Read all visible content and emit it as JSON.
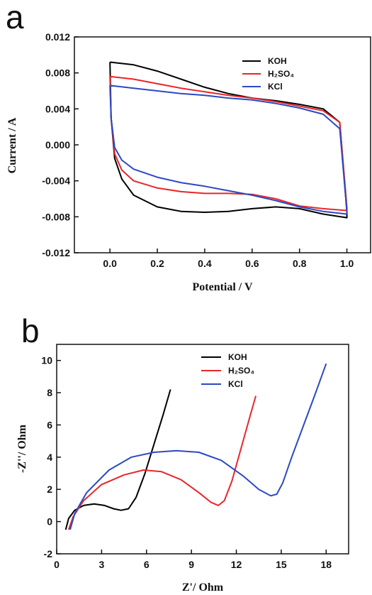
{
  "chart_data": [
    {
      "panel": "a",
      "type": "line",
      "xlabel": "Potential / V",
      "ylabel": "Current / A",
      "xlim": [
        -0.15,
        1.1
      ],
      "ylim": [
        -0.012,
        0.012
      ],
      "xticks": [
        "0.0",
        "0.2",
        "0.4",
        "0.6",
        "0.8",
        "1.0"
      ],
      "xtick_values": [
        0,
        0.2,
        0.4,
        0.6,
        0.8,
        1.0
      ],
      "yticks": [
        "0.012",
        "0.008",
        "0.004",
        "0.000",
        "-0.004",
        "-0.008",
        "-0.012"
      ],
      "ytick_values": [
        0.012,
        0.008,
        0.004,
        0.0,
        -0.004,
        -0.008,
        -0.012
      ],
      "legend_position": "top-right",
      "series": [
        {
          "name": "KOH",
          "color": "#000000",
          "x": [
            0,
            0.1,
            0.2,
            0.3,
            0.4,
            0.5,
            0.6,
            0.7,
            0.8,
            0.9,
            0.97,
            1.0,
            1.0,
            0.9,
            0.8,
            0.7,
            0.6,
            0.5,
            0.4,
            0.3,
            0.2,
            0.1,
            0.05,
            0.02,
            0.005,
            0
          ],
          "y": [
            0.0092,
            0.0089,
            0.0082,
            0.0073,
            0.0064,
            0.0057,
            0.0052,
            0.0049,
            0.0045,
            0.004,
            0.0025,
            -0.0075,
            -0.0081,
            -0.0077,
            -0.0071,
            -0.0069,
            -0.0071,
            -0.0074,
            -0.0075,
            -0.0074,
            -0.0069,
            -0.0056,
            -0.0038,
            -0.0015,
            0.003,
            0.0092
          ]
        },
        {
          "name": "H₂SO₄",
          "color": "#e8262a",
          "x": [
            0,
            0.1,
            0.2,
            0.3,
            0.4,
            0.5,
            0.6,
            0.7,
            0.8,
            0.9,
            0.97,
            1.0,
            1.0,
            0.9,
            0.8,
            0.7,
            0.6,
            0.5,
            0.4,
            0.3,
            0.2,
            0.1,
            0.05,
            0.02,
            0.005,
            0
          ],
          "y": [
            0.0076,
            0.0073,
            0.0068,
            0.0063,
            0.0059,
            0.0055,
            0.0052,
            0.0048,
            0.0043,
            0.0038,
            0.0025,
            -0.007,
            -0.0073,
            -0.0071,
            -0.0068,
            -0.006,
            -0.0055,
            -0.0054,
            -0.0054,
            -0.0052,
            -0.0048,
            -0.004,
            -0.0028,
            -0.001,
            0.003,
            0.0076
          ]
        },
        {
          "name": "KCl",
          "color": "#2b49c2",
          "x": [
            0,
            0.1,
            0.2,
            0.3,
            0.4,
            0.5,
            0.6,
            0.7,
            0.8,
            0.9,
            0.97,
            1.0,
            1.0,
            0.9,
            0.8,
            0.7,
            0.6,
            0.5,
            0.4,
            0.3,
            0.2,
            0.1,
            0.05,
            0.02,
            0.005,
            0
          ],
          "y": [
            0.0066,
            0.0063,
            0.006,
            0.0057,
            0.0055,
            0.0052,
            0.005,
            0.0046,
            0.0041,
            0.0034,
            0.0018,
            -0.0074,
            -0.0077,
            -0.0074,
            -0.0069,
            -0.0062,
            -0.0056,
            -0.0051,
            -0.0046,
            -0.0042,
            -0.0036,
            -0.0027,
            -0.0017,
            -0.0003,
            0.003,
            0.0066
          ]
        }
      ]
    },
    {
      "panel": "b",
      "type": "line",
      "xlabel": "Z'/ Ohm",
      "ylabel": "-Z''/ Ohm",
      "xlim": [
        0,
        19.5
      ],
      "ylim": [
        -2,
        11
      ],
      "xticks": [
        "0",
        "3",
        "6",
        "9",
        "12",
        "15",
        "18"
      ],
      "xtick_values": [
        0,
        3,
        6,
        9,
        12,
        15,
        18
      ],
      "yticks": [
        "10",
        "8",
        "6",
        "4",
        "2",
        "0",
        "-2"
      ],
      "ytick_values": [
        10,
        8,
        6,
        4,
        2,
        0,
        -2
      ],
      "legend_position": "top-center",
      "series": [
        {
          "name": "KOH",
          "color": "#000000",
          "x": [
            0.6,
            0.8,
            1.2,
            1.8,
            2.5,
            3.2,
            3.8,
            4.3,
            4.8,
            5.3,
            5.9,
            6.5,
            7.1,
            7.6
          ],
          "y": [
            -0.5,
            0.2,
            0.7,
            1.0,
            1.1,
            1.0,
            0.8,
            0.7,
            0.8,
            1.5,
            3.0,
            4.8,
            6.6,
            8.2
          ]
        },
        {
          "name": "H₂SO₄",
          "color": "#e8262a",
          "x": [
            0.8,
            1.1,
            1.8,
            3.0,
            4.5,
            5.8,
            7.0,
            8.3,
            9.5,
            10.3,
            10.8,
            11.2,
            11.7,
            12.3,
            12.9,
            13.3
          ],
          "y": [
            -0.5,
            0.3,
            1.3,
            2.3,
            2.9,
            3.2,
            3.1,
            2.6,
            1.8,
            1.2,
            1.0,
            1.3,
            2.5,
            4.5,
            6.5,
            7.8
          ]
        },
        {
          "name": "KCl",
          "color": "#2b49c2",
          "x": [
            0.9,
            1.2,
            2.0,
            3.5,
            5.0,
            6.5,
            8.0,
            9.5,
            11.0,
            12.5,
            13.5,
            14.3,
            14.7,
            15.1,
            15.7,
            16.5,
            17.3,
            18.0
          ],
          "y": [
            -0.5,
            0.5,
            1.8,
            3.2,
            4.0,
            4.3,
            4.4,
            4.3,
            3.8,
            2.8,
            2.0,
            1.6,
            1.7,
            2.4,
            4.0,
            6.0,
            8.0,
            9.8
          ]
        }
      ]
    }
  ],
  "panel_labels": {
    "a": "a",
    "b": "b"
  },
  "legend_a": [
    "KOH",
    "H₂SO₄",
    "KCl"
  ],
  "legend_b": [
    "KOH",
    "H₂SO₄",
    "KCl"
  ],
  "colors": {
    "koh": "#000000",
    "h2so4": "#e8262a",
    "kcl": "#2b49c2"
  }
}
